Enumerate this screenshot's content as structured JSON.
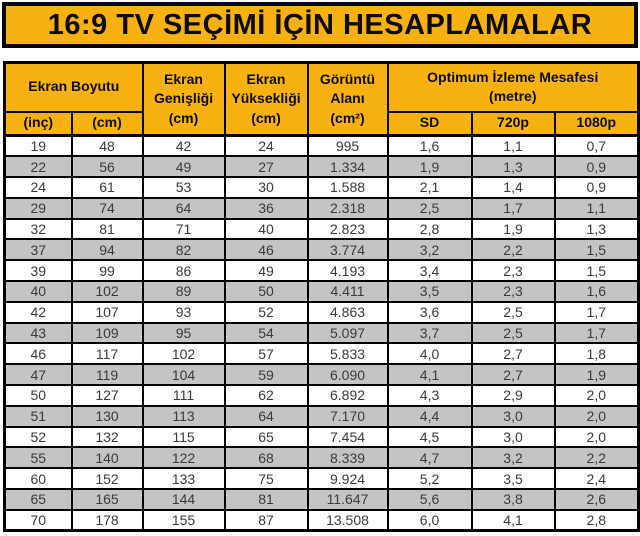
{
  "title": "16:9 TV SEÇİMİ İÇİN HESAPLAMALAR",
  "colors": {
    "gold_header": "#F7B211",
    "alt_row_gray": "#C4C4C4",
    "cell_text": "#3A3A3A",
    "border": "#000000",
    "row_bg": "#FFFFFF"
  },
  "table": {
    "header": {
      "ekran_boyutu": "Ekran Boyutu",
      "ekran_genisligi": "Ekran\nGenişliği\n(cm)",
      "ekran_yuksekligi": "Ekran\nYüksekliği\n(cm)",
      "goruntu_alani": "Görüntü\nAlanı\n(cm²)",
      "optimum_izleme": "Optimum İzleme Mesafesi\n(metre)"
    },
    "subheader": {
      "inc": "(inç)",
      "cm": "(cm)",
      "sd": "SD",
      "p720": "720p",
      "p1080": "1080p"
    }
  },
  "chart_data": {
    "type": "table",
    "title": "16:9 TV SEÇİMİ İÇİN HESAPLAMALAR",
    "columns": [
      "Ekran Boyutu (inç)",
      "Ekran Boyutu (cm)",
      "Ekran Genişliği (cm)",
      "Ekran Yüksekliği (cm)",
      "Görüntü Alanı (cm²)",
      "Optimum İzleme Mesafesi SD (metre)",
      "Optimum İzleme Mesafesi 720p (metre)",
      "Optimum İzleme Mesafesi 1080p (metre)"
    ],
    "rows": [
      [
        "19",
        "48",
        "42",
        "24",
        "995",
        "1,6",
        "1,1",
        "0,7"
      ],
      [
        "22",
        "56",
        "49",
        "27",
        "1.334",
        "1,9",
        "1,3",
        "0,9"
      ],
      [
        "24",
        "61",
        "53",
        "30",
        "1.588",
        "2,1",
        "1,4",
        "0,9"
      ],
      [
        "29",
        "74",
        "64",
        "36",
        "2.318",
        "2,5",
        "1,7",
        "1,1"
      ],
      [
        "32",
        "81",
        "71",
        "40",
        "2.823",
        "2,8",
        "1,9",
        "1,3"
      ],
      [
        "37",
        "94",
        "82",
        "46",
        "3.774",
        "3,2",
        "2,2",
        "1,5"
      ],
      [
        "39",
        "99",
        "86",
        "49",
        "4.193",
        "3,4",
        "2,3",
        "1,5"
      ],
      [
        "40",
        "102",
        "89",
        "50",
        "4.411",
        "3,5",
        "2,3",
        "1,6"
      ],
      [
        "42",
        "107",
        "93",
        "52",
        "4.863",
        "3,6",
        "2,5",
        "1,7"
      ],
      [
        "43",
        "109",
        "95",
        "54",
        "5.097",
        "3,7",
        "2,5",
        "1,7"
      ],
      [
        "46",
        "117",
        "102",
        "57",
        "5.833",
        "4,0",
        "2,7",
        "1,8"
      ],
      [
        "47",
        "119",
        "104",
        "59",
        "6.090",
        "4,1",
        "2,7",
        "1,9"
      ],
      [
        "50",
        "127",
        "111",
        "62",
        "6.892",
        "4,3",
        "2,9",
        "2,0"
      ],
      [
        "51",
        "130",
        "113",
        "64",
        "7.170",
        "4,4",
        "3,0",
        "2,0"
      ],
      [
        "52",
        "132",
        "115",
        "65",
        "7.454",
        "4,5",
        "3,0",
        "2,0"
      ],
      [
        "55",
        "140",
        "122",
        "68",
        "8.339",
        "4,7",
        "3,2",
        "2,2"
      ],
      [
        "60",
        "152",
        "133",
        "75",
        "9.924",
        "5,2",
        "3,5",
        "2,4"
      ],
      [
        "65",
        "165",
        "144",
        "81",
        "11.647",
        "5,6",
        "3,8",
        "2,6"
      ],
      [
        "70",
        "178",
        "155",
        "87",
        "13.508",
        "6,0",
        "4,1",
        "2,8"
      ]
    ]
  }
}
